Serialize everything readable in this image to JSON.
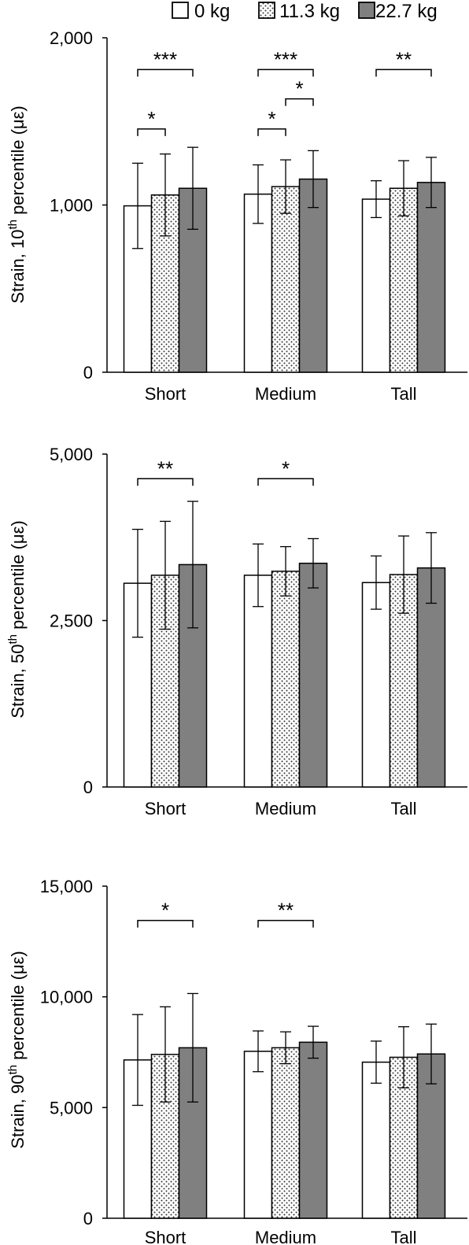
{
  "legend": {
    "items": [
      {
        "label": "0 kg",
        "fill": "white"
      },
      {
        "label": "11.3 kg",
        "fill": "dots"
      },
      {
        "label": "22.7 kg",
        "fill": "#808080"
      }
    ]
  },
  "chart_data": [
    {
      "type": "bar",
      "categories": [
        "Short",
        "Medium",
        "Tall"
      ],
      "ylabel": "Strain, 10",
      "ylabel_sup": "th",
      "ylabel_tail": " percentile (με)",
      "ylim": [
        0,
        2000
      ],
      "yticks": [
        0,
        1000,
        2000
      ],
      "ytick_labels": [
        "0",
        "1,000",
        "2,000"
      ],
      "series": [
        {
          "name": "0 kg",
          "values": [
            995,
            1065,
            1035
          ],
          "errors": [
            255,
            175,
            110
          ]
        },
        {
          "name": "11.3 kg",
          "values": [
            1060,
            1110,
            1100
          ],
          "errors": [
            245,
            160,
            165
          ]
        },
        {
          "name": "22.7 kg",
          "values": [
            1100,
            1155,
            1135
          ],
          "errors": [
            245,
            170,
            150
          ]
        }
      ],
      "significance": [
        {
          "category": 0,
          "from": 0,
          "to": 2,
          "y": 1810,
          "label": "***"
        },
        {
          "category": 0,
          "from": 0,
          "to": 1,
          "y": 1455,
          "label": "*"
        },
        {
          "category": 1,
          "from": 0,
          "to": 2,
          "y": 1810,
          "label": "***"
        },
        {
          "category": 1,
          "from": 1,
          "to": 2,
          "y": 1635,
          "label": "*"
        },
        {
          "category": 1,
          "from": 0,
          "to": 1,
          "y": 1455,
          "label": "*"
        },
        {
          "category": 2,
          "from": 0,
          "to": 2,
          "y": 1810,
          "label": "**"
        }
      ]
    },
    {
      "type": "bar",
      "categories": [
        "Short",
        "Medium",
        "Tall"
      ],
      "ylabel": "Strain, 50",
      "ylabel_sup": "th",
      "ylabel_tail": " percentile (με)",
      "ylim": [
        0,
        5000
      ],
      "yticks": [
        0,
        2500,
        5000
      ],
      "ytick_labels": [
        "0",
        "2,500",
        "5,000"
      ],
      "series": [
        {
          "name": "0 kg",
          "values": [
            3060,
            3180,
            3070
          ],
          "errors": [
            810,
            470,
            400
          ]
        },
        {
          "name": "11.3 kg",
          "values": [
            3180,
            3240,
            3190
          ],
          "errors": [
            810,
            370,
            580
          ]
        },
        {
          "name": "22.7 kg",
          "values": [
            3340,
            3360,
            3290
          ],
          "errors": [
            950,
            370,
            530
          ]
        }
      ],
      "significance": [
        {
          "category": 0,
          "from": 0,
          "to": 2,
          "y": 4630,
          "label": "**"
        },
        {
          "category": 1,
          "from": 0,
          "to": 2,
          "y": 4630,
          "label": "*"
        }
      ]
    },
    {
      "type": "bar",
      "categories": [
        "Short",
        "Medium",
        "Tall"
      ],
      "ylabel": "Strain, 90",
      "ylabel_sup": "th",
      "ylabel_tail": " percentile (με)",
      "ylim": [
        0,
        15000
      ],
      "yticks": [
        0,
        5000,
        10000,
        15000
      ],
      "ytick_labels": [
        "0",
        "5,000",
        "10,000",
        "15,000"
      ],
      "series": [
        {
          "name": "0 kg",
          "values": [
            7150,
            7540,
            7050
          ],
          "errors": [
            2050,
            920,
            950
          ]
        },
        {
          "name": "11.3 kg",
          "values": [
            7400,
            7700,
            7270
          ],
          "errors": [
            2150,
            720,
            1380
          ]
        },
        {
          "name": "22.7 kg",
          "values": [
            7700,
            7950,
            7420
          ],
          "errors": [
            2450,
            720,
            1350
          ]
        }
      ],
      "significance": [
        {
          "category": 0,
          "from": 0,
          "to": 2,
          "y": 13450,
          "label": "*"
        },
        {
          "category": 1,
          "from": 0,
          "to": 2,
          "y": 13450,
          "label": "**"
        }
      ]
    }
  ]
}
